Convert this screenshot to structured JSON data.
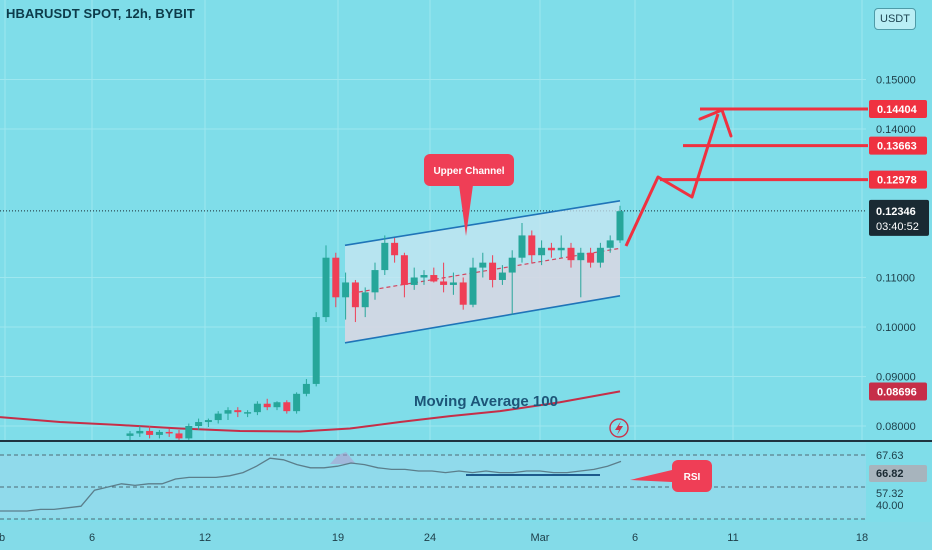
{
  "header": {
    "title": "HBARUSDT SPOT, 12h, BYBIT",
    "currency": "USDT"
  },
  "colors": {
    "background": "#7fdde9",
    "bull": "#26a69a",
    "bear": "#ef3e56",
    "moving_average": "#c62e48",
    "channel": "#1f74b8",
    "target": "#ef3140",
    "last_price": "#1a2a33"
  },
  "price_labels": {
    "last_price": "0.12346",
    "countdown": "03:40:52",
    "ma_value": "0.08696",
    "targets": [
      "0.14404",
      "0.13663",
      "0.12978"
    ]
  },
  "annotations": {
    "upper_channel": "Upper Channel",
    "moving_average": "Moving Average 100",
    "rsi": "RSI"
  },
  "chart_data": [
    {
      "type": "candlestick",
      "title": "HBARUSDT SPOT, 12h, BYBIT",
      "ylim": [
        0.0765,
        0.164
      ],
      "y_ticks": [
        "0.15000",
        "0.14000",
        "0.11000",
        "0.10000",
        "0.09000",
        "0.08000"
      ],
      "x_tick_labels": [
        "b",
        "6",
        "12",
        "19",
        "24",
        "Mar",
        "6",
        "11",
        "18"
      ],
      "target_levels": [
        0.14404,
        0.13663,
        0.12978
      ],
      "last_price": 0.12346,
      "candles": [
        [
          0.078,
          0.079,
          0.077,
          0.0785
        ],
        [
          0.0785,
          0.08,
          0.0778,
          0.079
        ],
        [
          0.079,
          0.08,
          0.0775,
          0.0782
        ],
        [
          0.0782,
          0.0792,
          0.0775,
          0.0788
        ],
        [
          0.0788,
          0.0795,
          0.0778,
          0.0785
        ],
        [
          0.0785,
          0.0792,
          0.077,
          0.0775
        ],
        [
          0.0775,
          0.0805,
          0.0772,
          0.08
        ],
        [
          0.08,
          0.0815,
          0.0792,
          0.0808
        ],
        [
          0.0808,
          0.0815,
          0.0798,
          0.0812
        ],
        [
          0.0812,
          0.083,
          0.0805,
          0.0825
        ],
        [
          0.0825,
          0.0838,
          0.0812,
          0.0832
        ],
        [
          0.0832,
          0.0838,
          0.0818,
          0.0828
        ],
        [
          0.0828,
          0.0832,
          0.0818,
          0.0828
        ],
        [
          0.0828,
          0.085,
          0.0822,
          0.0845
        ],
        [
          0.0845,
          0.0855,
          0.0832,
          0.0838
        ],
        [
          0.0838,
          0.085,
          0.0832,
          0.0848
        ],
        [
          0.0848,
          0.0852,
          0.0825,
          0.083
        ],
        [
          0.083,
          0.0868,
          0.0825,
          0.0865
        ],
        [
          0.0865,
          0.0895,
          0.086,
          0.0885
        ],
        [
          0.0885,
          0.103,
          0.088,
          0.102
        ],
        [
          0.102,
          0.1165,
          0.101,
          0.114
        ],
        [
          0.114,
          0.115,
          0.104,
          0.106
        ],
        [
          0.106,
          0.111,
          0.1015,
          0.109
        ],
        [
          0.109,
          0.1095,
          0.101,
          0.104
        ],
        [
          0.104,
          0.108,
          0.102,
          0.107
        ],
        [
          0.107,
          0.113,
          0.1055,
          0.1115
        ],
        [
          0.1115,
          0.1185,
          0.1105,
          0.117
        ],
        [
          0.117,
          0.118,
          0.113,
          0.1145
        ],
        [
          0.1145,
          0.115,
          0.106,
          0.1085
        ],
        [
          0.1085,
          0.112,
          0.1075,
          0.11
        ],
        [
          0.11,
          0.1115,
          0.1085,
          0.1105
        ],
        [
          0.1105,
          0.112,
          0.109,
          0.1092
        ],
        [
          0.1092,
          0.113,
          0.107,
          0.1085
        ],
        [
          0.1085,
          0.111,
          0.1065,
          0.109
        ],
        [
          0.109,
          0.11,
          0.1035,
          0.1045
        ],
        [
          0.1045,
          0.114,
          0.104,
          0.112
        ],
        [
          0.112,
          0.115,
          0.11,
          0.113
        ],
        [
          0.113,
          0.1145,
          0.108,
          0.1095
        ],
        [
          0.1095,
          0.1125,
          0.1085,
          0.111
        ],
        [
          0.111,
          0.1155,
          0.1025,
          0.114
        ],
        [
          0.114,
          0.121,
          0.113,
          0.1185
        ],
        [
          0.1185,
          0.1195,
          0.113,
          0.1145
        ],
        [
          0.1145,
          0.1175,
          0.1125,
          0.116
        ],
        [
          0.116,
          0.117,
          0.114,
          0.1155
        ],
        [
          0.1155,
          0.1185,
          0.114,
          0.116
        ],
        [
          0.116,
          0.117,
          0.112,
          0.1135
        ],
        [
          0.1135,
          0.116,
          0.106,
          0.115
        ],
        [
          0.115,
          0.116,
          0.112,
          0.113
        ],
        [
          0.113,
          0.117,
          0.112,
          0.116
        ],
        [
          0.116,
          0.1185,
          0.115,
          0.1175
        ],
        [
          0.1175,
          0.1245,
          0.117,
          0.1234
        ]
      ],
      "moving_average_100": [
        [
          0,
          0.0818
        ],
        [
          60,
          0.0808
        ],
        [
          120,
          0.0802
        ],
        [
          180,
          0.0795
        ],
        [
          240,
          0.079
        ],
        [
          300,
          0.0789
        ],
        [
          350,
          0.0795
        ],
        [
          400,
          0.0808
        ],
        [
          450,
          0.082
        ],
        [
          500,
          0.083
        ],
        [
          560,
          0.0848
        ],
        [
          620,
          0.087
        ]
      ],
      "channel": {
        "upper": [
          [
            345,
            0.1165
          ],
          [
            620,
            0.1255
          ]
        ],
        "lower": [
          [
            345,
            0.0968
          ],
          [
            620,
            0.1063
          ]
        ],
        "midline": [
          [
            345,
            0.1066
          ],
          [
            620,
            0.1159
          ]
        ]
      }
    },
    {
      "type": "line",
      "series": [
        {
          "name": "RSI",
          "values": [
            35,
            35,
            35,
            36,
            36,
            37,
            38,
            48,
            50,
            52,
            51,
            52,
            52,
            55,
            56,
            56,
            56,
            57,
            59,
            63,
            68,
            67,
            64,
            62,
            62,
            63,
            65,
            64,
            62,
            61,
            61,
            60,
            60,
            59,
            60,
            59,
            60,
            59,
            59,
            60,
            60,
            59,
            59,
            60,
            61,
            63,
            66
          ]
        }
      ],
      "ylim": [
        30,
        75
      ],
      "y_labels": [
        "67.63",
        "66.82",
        "57.32",
        "40.00"
      ],
      "level_lines": [
        70,
        50,
        30
      ],
      "support_segment": [
        57.5,
        57.5
      ]
    }
  ]
}
